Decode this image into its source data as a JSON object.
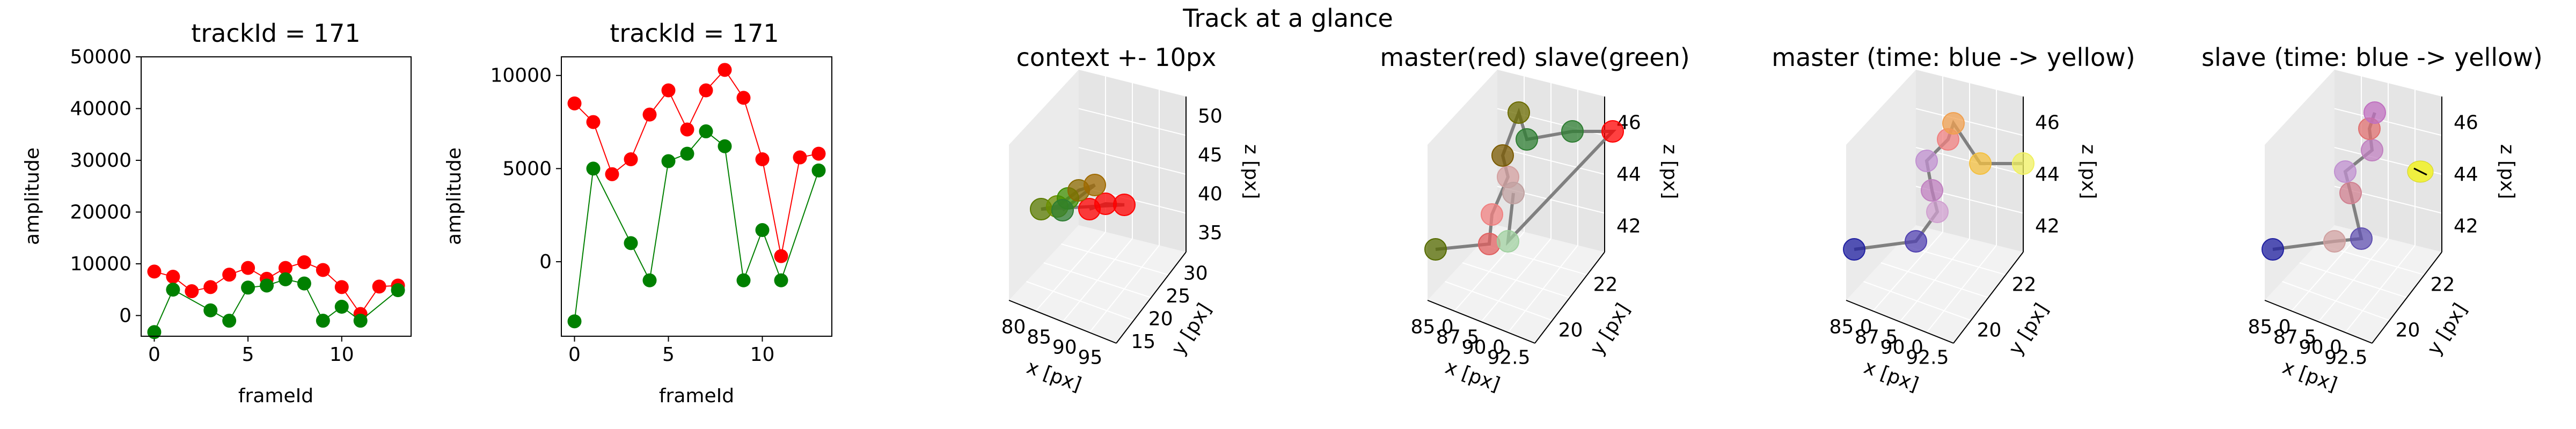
{
  "suptitle": "Track at a glance",
  "chart_data": [
    {
      "type": "line",
      "title": "trackId = 171",
      "xlabel": "frameId",
      "ylabel": "amplitude",
      "xlim": [
        -0.7,
        13.7
      ],
      "ylim": [
        -4000,
        50000
      ],
      "xticks": [
        0,
        5,
        10
      ],
      "yticks": [
        0,
        10000,
        20000,
        30000,
        40000,
        50000
      ],
      "grid": false,
      "x": [
        0,
        1,
        2,
        3,
        4,
        5,
        6,
        7,
        8,
        9,
        10,
        11,
        12,
        13
      ],
      "series": [
        {
          "color": "#ff0000",
          "values": [
            8500,
            7500,
            4700,
            5500,
            7900,
            9200,
            7100,
            9200,
            10300,
            8800,
            5500,
            300,
            5600,
            5800
          ]
        },
        {
          "color": "#008000",
          "values": [
            -3200,
            5000,
            null,
            1000,
            -1000,
            5400,
            5800,
            7000,
            6200,
            -1000,
            1700,
            -1000,
            null,
            4900
          ]
        }
      ]
    },
    {
      "type": "line",
      "title": "trackId = 171",
      "xlabel": "frameId",
      "ylabel": "amplitude",
      "xlim": [
        -0.7,
        13.7
      ],
      "ylim": [
        -4000,
        11000
      ],
      "xticks": [
        0,
        5,
        10
      ],
      "yticks": [
        0,
        5000,
        10000
      ],
      "grid": false,
      "x": [
        0,
        1,
        2,
        3,
        4,
        5,
        6,
        7,
        8,
        9,
        10,
        11,
        12,
        13
      ],
      "series": [
        {
          "color": "#ff0000",
          "values": [
            8500,
            7500,
            4700,
            5500,
            7900,
            9200,
            7100,
            9200,
            10300,
            8800,
            5500,
            300,
            5600,
            5800
          ]
        },
        {
          "color": "#008000",
          "values": [
            -3200,
            5000,
            null,
            1000,
            -1000,
            5400,
            5800,
            7000,
            6200,
            -1000,
            1700,
            -1000,
            null,
            4900
          ]
        }
      ]
    },
    {
      "type": "scatter3d",
      "title": "context +- 10px",
      "xlabel": "x [px]",
      "ylabel": "y [px]",
      "zlabel": "z [px]",
      "xticks": [
        "80",
        "85",
        "90",
        "95"
      ],
      "yticks": [
        "15",
        "20",
        "25",
        "30"
      ],
      "zticks": [
        "35",
        "40",
        "45",
        "50"
      ]
    },
    {
      "type": "scatter3d",
      "title": "master(red) slave(green)",
      "xlabel": "x [px]",
      "ylabel": "y [px]",
      "zlabel": "z [px]",
      "xticks": [
        "85.0",
        "87.5",
        "90.0",
        "92.5"
      ],
      "yticks": [
        "20",
        "22"
      ],
      "zticks": [
        "42",
        "44",
        "46"
      ]
    },
    {
      "type": "scatter3d",
      "title": "master (time: blue -> yellow)",
      "xlabel": "x [px]",
      "ylabel": "y [px]",
      "zlabel": "z [px]",
      "xticks": [
        "85.0",
        "87.5",
        "90.0",
        "92.5"
      ],
      "yticks": [
        "20",
        "22"
      ],
      "zticks": [
        "42",
        "44",
        "46"
      ]
    },
    {
      "type": "scatter3d",
      "title": "slave (time: blue -> yellow)",
      "xlabel": "x [px]",
      "ylabel": "y [px]",
      "zlabel": "z [px]",
      "xticks": [
        "85.0",
        "87.5",
        "90.0",
        "92.5"
      ],
      "yticks": [
        "20",
        "22"
      ],
      "zticks": [
        "42",
        "44",
        "46"
      ]
    }
  ]
}
